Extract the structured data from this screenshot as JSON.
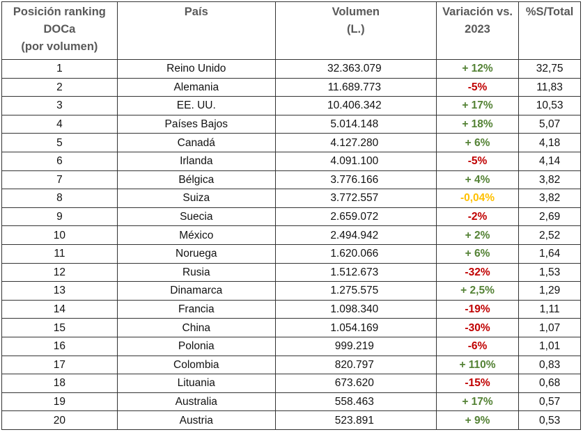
{
  "colors": {
    "positive": "#548235",
    "negative": "#c00000",
    "neutral": "#ffc000",
    "header_text": "#595959"
  },
  "headers": {
    "position": [
      "Posición ranking",
      "DOCa",
      "(por volumen)"
    ],
    "country": "País",
    "volume": [
      "Volumen",
      "(L.)"
    ],
    "variation": [
      "Variación vs.",
      "2023"
    ],
    "share": "%S/Total"
  },
  "rows": [
    {
      "rank": "1",
      "country": "Reino Unido",
      "volume": "32.363.079",
      "variation": "+ 12%",
      "trend": "positive",
      "share": "32,75"
    },
    {
      "rank": "2",
      "country": "Alemania",
      "volume": "11.689.773",
      "variation": "-5%",
      "trend": "negative",
      "share": "11,83"
    },
    {
      "rank": "3",
      "country": "EE. UU.",
      "volume": "10.406.342",
      "variation": "+ 17%",
      "trend": "positive",
      "share": "10,53"
    },
    {
      "rank": "4",
      "country": "Países Bajos",
      "volume": "5.014.148",
      "variation": "+ 18%",
      "trend": "positive",
      "share": "5,07"
    },
    {
      "rank": "5",
      "country": "Canadá",
      "volume": "4.127.280",
      "variation": "+ 6%",
      "trend": "positive",
      "share": "4,18"
    },
    {
      "rank": "6",
      "country": "Irlanda",
      "volume": "4.091.100",
      "variation": "-5%",
      "trend": "negative",
      "share": "4,14"
    },
    {
      "rank": "7",
      "country": "Bélgica",
      "volume": "3.776.166",
      "variation": "+ 4%",
      "trend": "positive",
      "share": "3,82"
    },
    {
      "rank": "8",
      "country": "Suiza",
      "volume": "3.772.557",
      "variation": "-0,04%",
      "trend": "neutral",
      "share": "3,82"
    },
    {
      "rank": "9",
      "country": "Suecia",
      "volume": "2.659.072",
      "variation": "-2%",
      "trend": "negative",
      "share": "2,69"
    },
    {
      "rank": "10",
      "country": "México",
      "volume": "2.494.942",
      "variation": "+ 2%",
      "trend": "positive",
      "share": "2,52"
    },
    {
      "rank": "11",
      "country": "Noruega",
      "volume": "1.620.066",
      "variation": "+ 6%",
      "trend": "positive",
      "share": "1,64"
    },
    {
      "rank": "12",
      "country": "Rusia",
      "volume": "1.512.673",
      "variation": "-32%",
      "trend": "negative",
      "share": "1,53"
    },
    {
      "rank": "13",
      "country": "Dinamarca",
      "volume": "1.275.575",
      "variation": "+ 2,5%",
      "trend": "positive",
      "share": "1,29"
    },
    {
      "rank": "14",
      "country": "Francia",
      "volume": "1.098.340",
      "variation": "-19%",
      "trend": "negative",
      "share": "1,11"
    },
    {
      "rank": "15",
      "country": "China",
      "volume": "1.054.169",
      "variation": "-30%",
      "trend": "negative",
      "share": "1,07"
    },
    {
      "rank": "16",
      "country": "Polonia",
      "volume": "999.219",
      "variation": "-6%",
      "trend": "negative",
      "share": "1,01"
    },
    {
      "rank": "17",
      "country": "Colombia",
      "volume": "820.797",
      "variation": "+ 110%",
      "trend": "positive",
      "share": "0,83"
    },
    {
      "rank": "18",
      "country": "Lituania",
      "volume": "673.620",
      "variation": "-15%",
      "trend": "negative",
      "share": "0,68"
    },
    {
      "rank": "19",
      "country": "Australia",
      "volume": "558.463",
      "variation": "+ 17%",
      "trend": "positive",
      "share": "0,57"
    },
    {
      "rank": "20",
      "country": "Austria",
      "volume": "523.891",
      "variation": "+ 9%",
      "trend": "positive",
      "share": "0,53"
    }
  ]
}
